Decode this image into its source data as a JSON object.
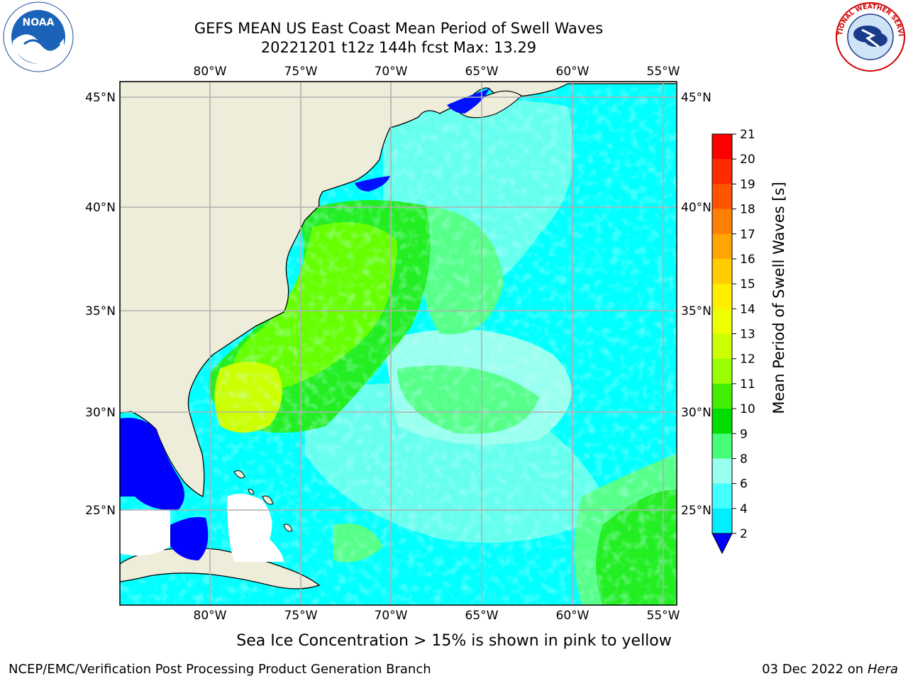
{
  "header": {
    "title_line1": "GEFS MEAN US East Coast Mean Period of Swell Waves",
    "title_line2": "20221201 t12z 144h fcst   Max: 13.29"
  },
  "map": {
    "lon_labels": [
      "80°W",
      "75°W",
      "70°W",
      "65°W",
      "60°W",
      "55°W"
    ],
    "lat_labels": [
      "45°N",
      "40°N",
      "35°N",
      "30°N",
      "25°N"
    ],
    "extent": {
      "lon": [
        -85,
        -54.5
      ],
      "lat": [
        20.5,
        46
      ]
    },
    "ocean_color": "#00ffff",
    "land_color": "#eeedd9"
  },
  "colorbar": {
    "label": "Mean Period of Swell Waves [s]",
    "ticks": [
      "21",
      "20",
      "19",
      "18",
      "17",
      "16",
      "15",
      "14",
      "13",
      "12",
      "11",
      "10",
      "9",
      "8",
      "6",
      "4",
      "2"
    ],
    "colors": [
      "#ff0000",
      "#ff2a00",
      "#ff5500",
      "#ff7f00",
      "#ffa500",
      "#ffcc00",
      "#ffee00",
      "#eeff00",
      "#ccff00",
      "#99ff00",
      "#44ee00",
      "#00dd00",
      "#44ff77",
      "#99ffee",
      "#44ffff",
      "#00eeff",
      "#00bbff",
      "#0066ff"
    ],
    "extend_color": "#0000ff"
  },
  "footer": {
    "ice_note": "Sea Ice Concentration > 15% is shown in pink to yellow",
    "credit": "NCEP/EMC/Verification Post Processing Product Generation Branch",
    "date": "03 Dec 2022 on",
    "host": "Hera"
  },
  "logos": {
    "noaa_text": "NOAA",
    "nws_text": "NATIONAL WEATHER SERVICE"
  }
}
